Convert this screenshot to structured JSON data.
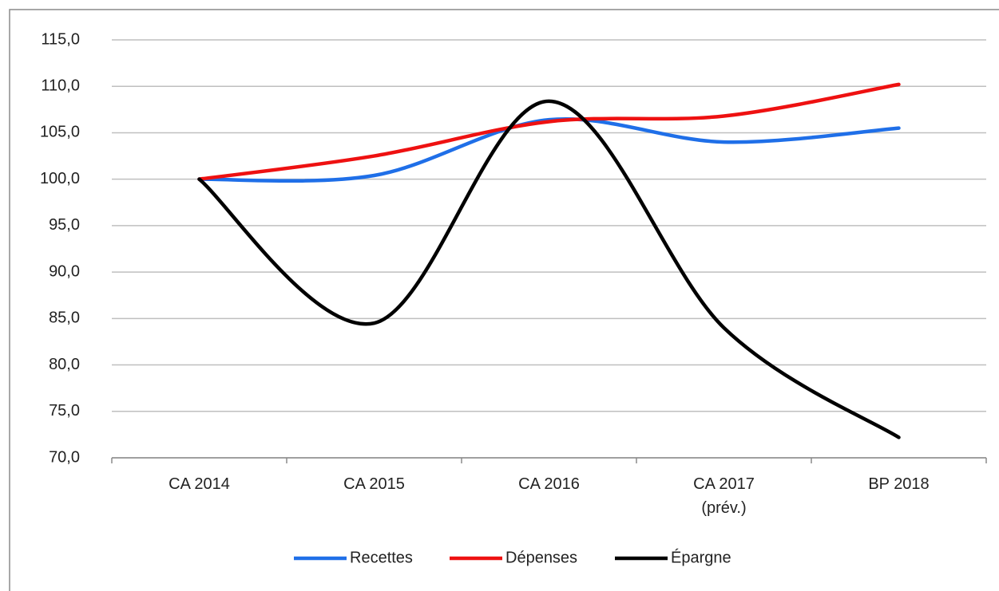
{
  "chart_data": {
    "type": "line",
    "categories": [
      "CA 2014",
      "CA 2015",
      "CA 2016",
      "CA 2017\n(prév.)",
      "BP 2018"
    ],
    "series": [
      {
        "name": "Recettes",
        "color": "#1f6fe8",
        "values": [
          100.0,
          100.4,
          106.4,
          104.0,
          105.5
        ]
      },
      {
        "name": "Dépenses",
        "color": "#ee1111",
        "values": [
          100.0,
          102.5,
          106.2,
          106.8,
          110.2
        ]
      },
      {
        "name": "Épargne",
        "color": "#000000",
        "values": [
          100.0,
          84.5,
          108.4,
          84.0,
          72.2
        ]
      }
    ],
    "ylim": [
      70,
      115
    ],
    "yticks": [
      {
        "value": 70,
        "label": "70,0"
      },
      {
        "value": 75,
        "label": "75,0"
      },
      {
        "value": 80,
        "label": "80,0"
      },
      {
        "value": 85,
        "label": "85,0"
      },
      {
        "value": 90,
        "label": "90,0"
      },
      {
        "value": 95,
        "label": "95,0"
      },
      {
        "value": 100,
        "label": "100,0"
      },
      {
        "value": 105,
        "label": "105,0"
      },
      {
        "value": 110,
        "label": "110,0"
      },
      {
        "value": 115,
        "label": "115,0"
      }
    ],
    "grid": true,
    "smooth": true,
    "legend": "bottom"
  }
}
